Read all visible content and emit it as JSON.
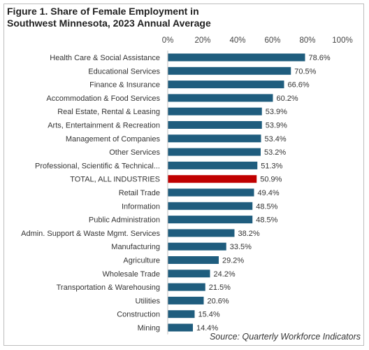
{
  "chart_data": {
    "type": "bar",
    "orientation": "horizontal",
    "title": "Figure 1. Share of Female Employment in Southwest Minnesota, 2023 Annual Average",
    "source": "Source: Quarterly Workforce Indicators",
    "xlim": [
      0,
      100
    ],
    "x_ticks": [
      "0%",
      "20%",
      "40%",
      "60%",
      "80%",
      "100%"
    ],
    "x_axis_position": "top",
    "grid": false,
    "bar_color": "#1f5d7e",
    "highlight_color": "#c00000",
    "categories": [
      "Health Care & Social Assistance",
      "Educational Services",
      "Finance & Insurance",
      "Accommodation & Food Services",
      "Real Estate, Rental & Leasing",
      "Arts, Entertainment & Recreation",
      "Management of Companies",
      "Other Services",
      "Professional, Scientific & Technical...",
      "TOTAL, ALL INDUSTRIES",
      "Retail Trade",
      "Information",
      "Public Administration",
      "Admin. Support & Waste Mgmt. Services",
      "Manufacturing",
      "Agriculture",
      "Wholesale Trade",
      "Transportation & Warehousing",
      "Utilities",
      "Construction",
      "Mining"
    ],
    "values": [
      78.6,
      70.5,
      66.6,
      60.2,
      53.9,
      53.9,
      53.4,
      53.2,
      51.3,
      50.9,
      49.4,
      48.5,
      48.5,
      38.2,
      33.5,
      29.2,
      24.2,
      21.5,
      20.6,
      15.4,
      14.4
    ],
    "value_labels": [
      "78.6%",
      "70.5%",
      "66.6%",
      "60.2%",
      "53.9%",
      "53.9%",
      "53.4%",
      "53.2%",
      "51.3%",
      "50.9%",
      "49.4%",
      "48.5%",
      "48.5%",
      "38.2%",
      "33.5%",
      "29.2%",
      "24.2%",
      "21.5%",
      "20.6%",
      "15.4%",
      "14.4%"
    ],
    "highlight_category": "TOTAL, ALL INDUSTRIES"
  }
}
